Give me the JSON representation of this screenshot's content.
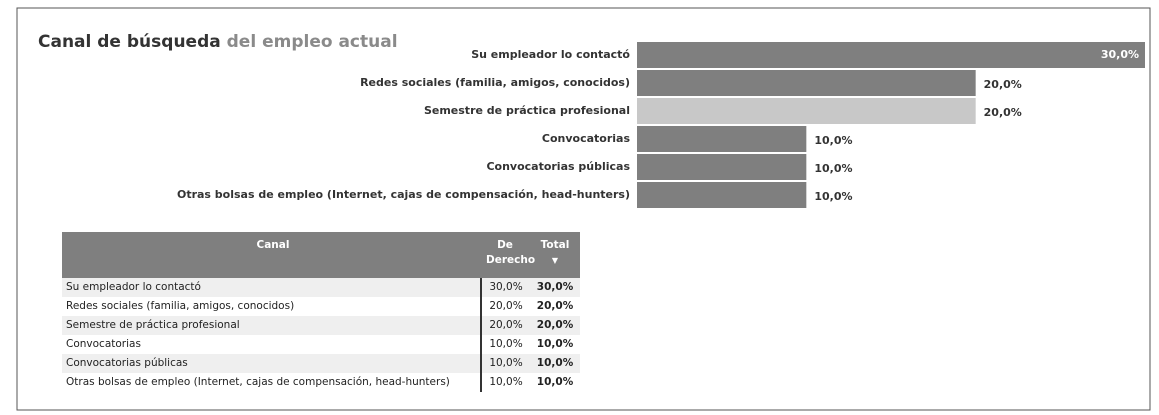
{
  "chart_data": {
    "type": "bar",
    "orientation": "horizontal",
    "title": "Canal de búsqueda",
    "subtitle": "del empleo actual",
    "categories": [
      "Su empleador lo contactó",
      "Redes sociales (familia, amigos, conocidos)",
      "Semestre de práctica profesional",
      "Convocatorias",
      "Convocatorias públicas",
      "Otras bolsas de empleo (Internet, cajas de compensación, head-hunters)"
    ],
    "values": [
      30,
      20,
      20,
      10,
      10,
      10
    ],
    "value_labels": [
      "30,0%",
      "20,0%",
      "20,0%",
      "10,0%",
      "10,0%",
      "10,0%"
    ],
    "colors": [
      "#7f7f7f",
      "#7f7f7f",
      "#c8c8c8",
      "#7f7f7f",
      "#7f7f7f",
      "#7f7f7f"
    ]
  },
  "table": {
    "columns": [
      "Canal",
      "De Derecho",
      "Total"
    ],
    "rows": [
      [
        "Su empleador lo contactó",
        "30,0%",
        "30,0%"
      ],
      [
        "Redes sociales (familia, amigos, conocidos)",
        "20,0%",
        "20,0%"
      ],
      [
        "Semestre de práctica profesional",
        "20,0%",
        "20,0%"
      ],
      [
        "Convocatorias",
        "10,0%",
        "10,0%"
      ],
      [
        "Convocatorias públicas",
        "10,0%",
        "10,0%"
      ],
      [
        "Otras bolsas de empleo (Internet, cajas de compensación, head-hunters)",
        "10,0%",
        "10,0%"
      ]
    ]
  }
}
